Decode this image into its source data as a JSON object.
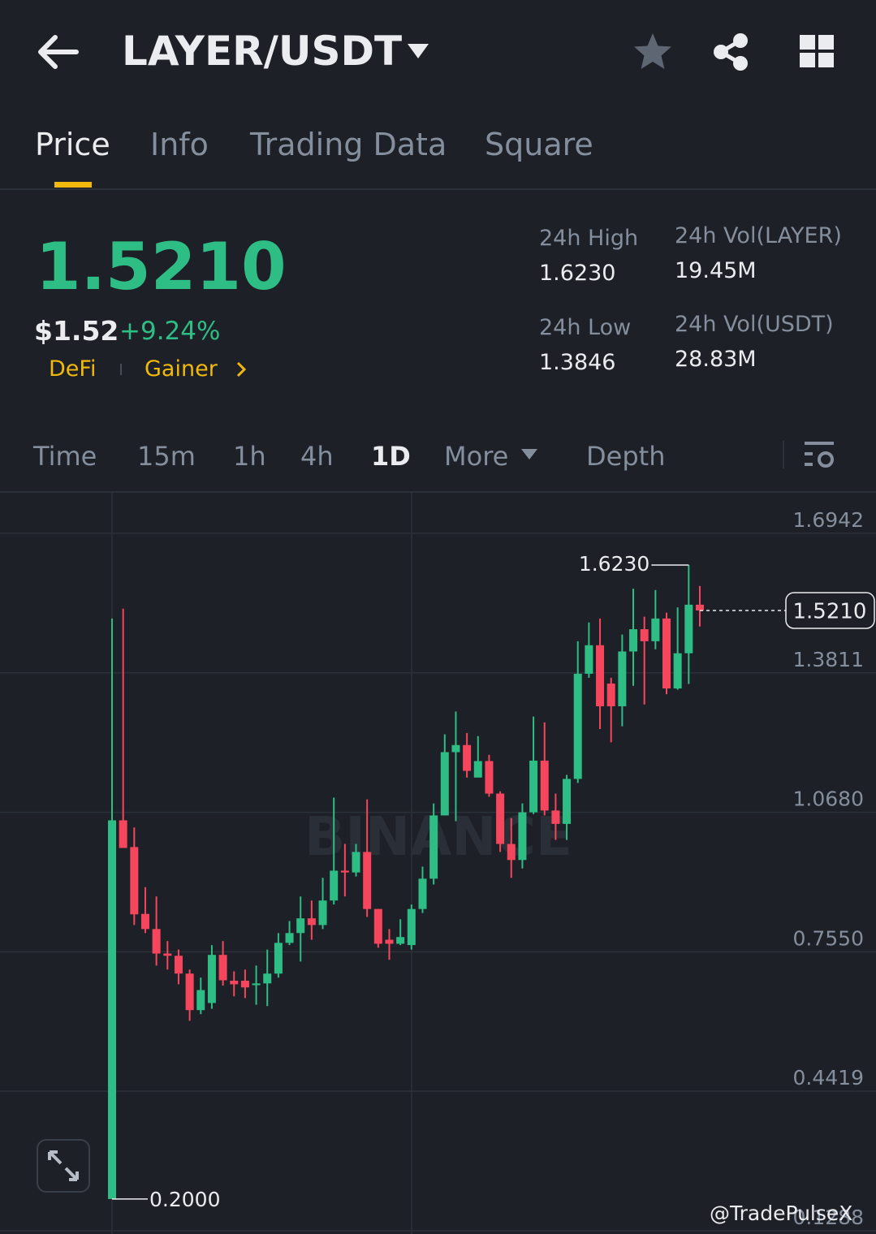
{
  "header": {
    "title": "LAYER/USDT"
  },
  "tabs": [
    "Price",
    "Info",
    "Trading Data",
    "Square"
  ],
  "ticker": {
    "price": "1.5210",
    "usd_price": "$1.52",
    "change": "+9.24%",
    "tags": [
      "DeFi",
      "Gainer"
    ],
    "stats": [
      {
        "label": "24h High",
        "value": "1.6230"
      },
      {
        "label": "24h Vol(LAYER)",
        "value": "19.45M"
      },
      {
        "label": "24h Low",
        "value": "1.3846"
      },
      {
        "label": "24h Vol(USDT)",
        "value": "28.83M"
      }
    ]
  },
  "intervals": [
    "Time",
    "15m",
    "1h",
    "4h",
    "1D",
    "More",
    "Depth"
  ],
  "chart_data": {
    "type": "candlestick",
    "up_color": "#2ebd85",
    "down_color": "#f6465d",
    "open": [
      0.2,
      1.05,
      0.99,
      0.84,
      0.806,
      0.751,
      0.746,
      0.706,
      0.624,
      0.64,
      0.748,
      0.69,
      0.69,
      0.68,
      0.684,
      0.706,
      0.775,
      0.797,
      0.83,
      0.815,
      0.87,
      0.937,
      0.933,
      0.979,
      0.851,
      0.782,
      0.773,
      0.77,
      0.851,
      0.919,
      1.061,
      1.203,
      1.219,
      1.146,
      1.183,
      1.11,
      0.997,
      0.961,
      1.068,
      1.184,
      1.072,
      1.042,
      1.143,
      1.379,
      1.443,
      1.357,
      1.306,
      1.429,
      1.479,
      1.452,
      1.503,
      1.346,
      1.425,
      1.534
    ],
    "high": [
      1.503,
      1.525,
      1.034,
      0.9,
      0.879,
      0.779,
      0.76,
      0.715,
      0.697,
      0.77,
      0.779,
      0.711,
      0.715,
      0.724,
      0.76,
      0.797,
      0.824,
      0.879,
      0.87,
      0.921,
      1.101,
      0.997,
      0.997,
      1.097,
      0.851,
      0.806,
      0.828,
      0.861,
      0.946,
      1.088,
      1.243,
      1.294,
      1.246,
      1.239,
      1.197,
      1.115,
      1.055,
      1.088,
      1.283,
      1.27,
      1.11,
      1.152,
      1.452,
      1.494,
      1.503,
      1.37,
      1.467,
      1.57,
      1.507,
      1.567,
      1.516,
      1.528,
      1.623,
      1.576
    ],
    "low": [
      0.2,
      0.988,
      0.815,
      0.797,
      0.724,
      0.715,
      0.682,
      0.6,
      0.615,
      0.627,
      0.679,
      0.655,
      0.651,
      0.636,
      0.633,
      0.697,
      0.77,
      0.733,
      0.782,
      0.806,
      0.861,
      0.879,
      0.924,
      0.833,
      0.764,
      0.737,
      0.77,
      0.76,
      0.842,
      0.906,
      1.061,
      1.048,
      1.146,
      1.15,
      1.103,
      0.979,
      0.921,
      0.942,
      1.064,
      1.061,
      1.006,
      1.006,
      1.134,
      1.37,
      1.255,
      1.225,
      1.261,
      1.352,
      1.31,
      1.434,
      1.333,
      1.343,
      1.356,
      1.485
    ],
    "close": [
      1.05,
      0.988,
      0.839,
      0.806,
      0.751,
      0.746,
      0.706,
      0.624,
      0.669,
      0.748,
      0.691,
      0.682,
      0.675,
      0.684,
      0.706,
      0.775,
      0.797,
      0.83,
      0.815,
      0.87,
      0.937,
      0.933,
      0.979,
      0.851,
      0.773,
      0.773,
      0.788,
      0.851,
      0.919,
      1.061,
      1.203,
      1.219,
      1.161,
      1.183,
      1.11,
      0.997,
      0.961,
      1.068,
      1.184,
      1.072,
      1.042,
      1.143,
      1.379,
      1.443,
      1.306,
      1.306,
      1.429,
      1.479,
      1.452,
      1.503,
      1.346,
      1.425,
      1.534,
      1.521
    ],
    "ylim": [
      0.1288,
      1.787
    ],
    "yticks": [
      0.1288,
      0.4419,
      {
        "value": 0.755,
        "label": "0.7550"
      },
      {
        "value": 1.068,
        "label": "1.0680"
      },
      1.3811,
      1.6942
    ],
    "grid": true,
    "annotations": {
      "high": {
        "value": 1.623,
        "label": "1.6230"
      },
      "low": {
        "value": 0.2,
        "label": "0.2000"
      },
      "last": {
        "value": 1.521,
        "label": "1.5210"
      }
    },
    "watermark": "BINANCE"
  },
  "credit": "@TradePulseX"
}
